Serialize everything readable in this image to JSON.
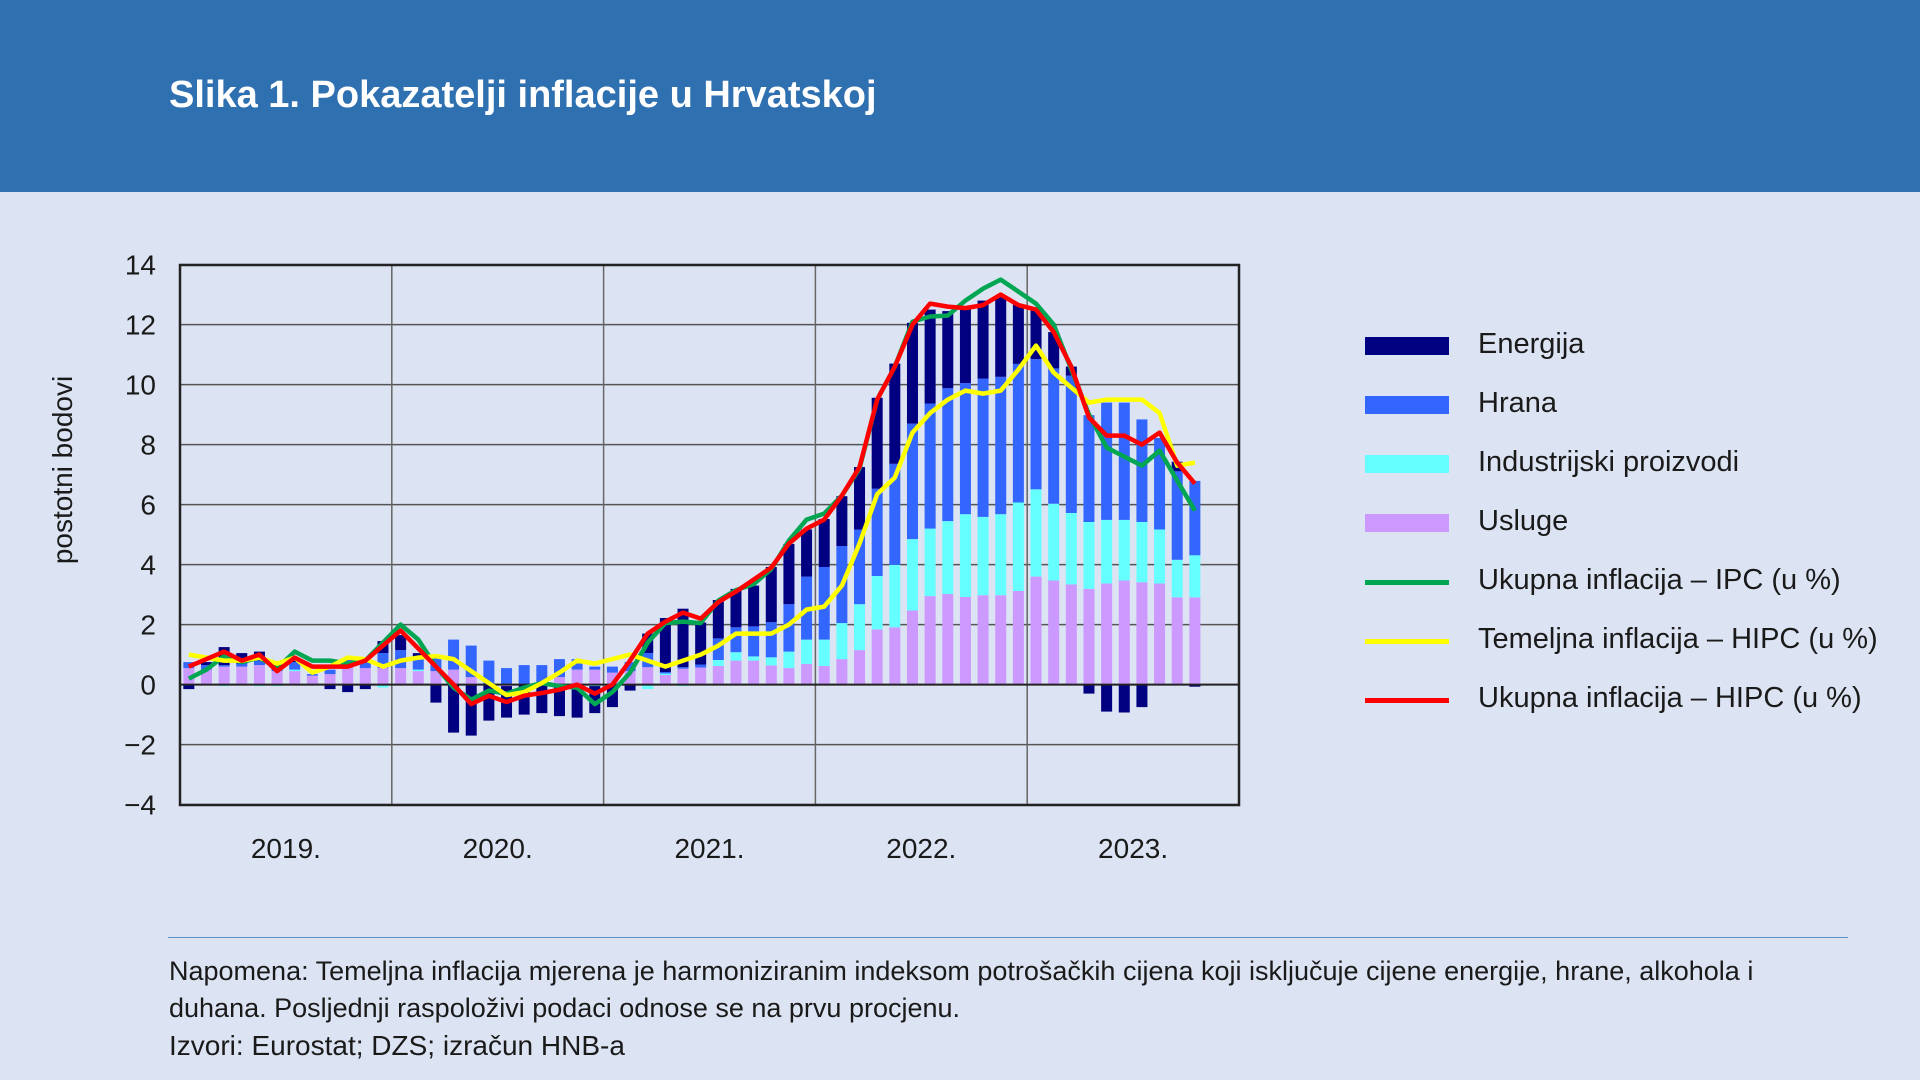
{
  "title": "Slika 1. Pokazatelji inflacije u Hrvatskoj",
  "note_line1": "Napomena: Temeljna inflacija mjerena je harmoniziranim indeksom potrošačkih cijena koji isključuje cijene energije, hrane, alkohola i",
  "note_line2": "duhana. Posljednji raspoloživi podaci odnose se na prvu procjenu.",
  "sources": "Izvori: Eurostat; DZS; izračun HNB-a",
  "chart_data": {
    "type": "bar",
    "title": "Slika 1. Pokazatelji inflacije u Hrvatskoj",
    "ylabel": "postotni bodovi",
    "xlabel": "",
    "ylim": [
      -4,
      14
    ],
    "yticks": [
      "14",
      "12",
      "10",
      "8",
      "6",
      "4",
      "2",
      "0",
      "−2",
      "−4"
    ],
    "ytick_values": [
      14,
      12,
      10,
      8,
      6,
      4,
      2,
      0,
      -2,
      -4
    ],
    "xticks": [
      "2019.",
      "2020.",
      "2021.",
      "2022.",
      "2023."
    ],
    "x_start": "2019-01",
    "months": 58,
    "grid": true,
    "legend_position": "right",
    "stacked_series": [
      {
        "name": "Usluge",
        "color": "#cc99ff",
        "values": [
          0.55,
          0.5,
          0.6,
          0.6,
          0.65,
          0.45,
          0.45,
          0.3,
          0.35,
          0.6,
          0.55,
          0.55,
          0.55,
          0.45,
          0.45,
          0.5,
          0.25,
          0,
          -0.05,
          0,
          0,
          0.25,
          0.5,
          0.5,
          0.4,
          0.45,
          0.58,
          0.32,
          0.53,
          0.57,
          0.62,
          0.8,
          0.8,
          0.64,
          0.55,
          0.69,
          0.62,
          0.85,
          1.15,
          1.84,
          1.91,
          2.47,
          2.95,
          3.02,
          2.92,
          2.98,
          2.98,
          3.12,
          3.6,
          3.47,
          3.34,
          3.19,
          3.37,
          3.47,
          3.41,
          3.37,
          2.91,
          2.91
        ]
      },
      {
        "name": "Industrijski proizvodi",
        "color": "#66ffff",
        "values": [
          0,
          0,
          -0.05,
          0,
          -0.05,
          -0.05,
          0.05,
          0,
          0,
          0,
          0,
          -0.1,
          0,
          0.05,
          0,
          0,
          0,
          0,
          0,
          0,
          0,
          0,
          0,
          -0.05,
          0,
          0,
          -0.15,
          0.05,
          -0.05,
          0,
          0.2,
          0.28,
          0.14,
          0.27,
          0.55,
          0.81,
          0.88,
          1.2,
          1.53,
          1.78,
          2.08,
          2.38,
          2.25,
          2.43,
          2.76,
          2.61,
          2.7,
          2.95,
          2.91,
          2.56,
          2.38,
          2.23,
          2.12,
          2.02,
          2.01,
          1.8,
          1.25,
          1.4
        ]
      },
      {
        "name": "Hrana",
        "color": "#3366ff",
        "values": [
          0.2,
          0.15,
          0.05,
          0.1,
          0.15,
          0.05,
          0.25,
          0.05,
          0.15,
          0.25,
          0.35,
          0.5,
          0.6,
          0.4,
          0.55,
          1.0,
          1.05,
          0.8,
          0.55,
          0.65,
          0.65,
          0.6,
          0.35,
          0.1,
          0.2,
          0.3,
          0.47,
          0.05,
          0.05,
          0.1,
          0.72,
          0.83,
          1.0,
          1.17,
          1.58,
          2.1,
          2.42,
          2.57,
          2.49,
          2.91,
          3.37,
          3.85,
          4.17,
          4.43,
          4.37,
          4.61,
          4.58,
          4.62,
          4.34,
          4.51,
          4.58,
          3.56,
          3.91,
          3.91,
          3.42,
          3.05,
          2.95,
          2.48
        ]
      },
      {
        "name": "Energija",
        "color": "#000080",
        "values": [
          -0.15,
          0.1,
          0.6,
          0.35,
          0.3,
          0.05,
          0.05,
          0,
          -0.15,
          -0.25,
          -0.15,
          0.4,
          0.5,
          0.15,
          -0.6,
          -1.6,
          -1.7,
          -1.2,
          -1.05,
          -1.0,
          -0.95,
          -1.05,
          -1.1,
          -0.9,
          -0.75,
          -0.2,
          0.65,
          1.8,
          1.95,
          1.4,
          1.28,
          1.28,
          1.36,
          1.84,
          2.01,
          1.57,
          1.6,
          1.66,
          2.08,
          3.03,
          3.34,
          3.36,
          3.13,
          2.57,
          2.51,
          2.6,
          2.67,
          1.97,
          1.67,
          1.21,
          0.3,
          -0.3,
          -0.9,
          -0.93,
          -0.75,
          0,
          0.32,
          -0.07
        ]
      }
    ],
    "line_series": [
      {
        "name": "Ukupna inflacija – IPC (u %)",
        "color": "#00a651",
        "values": [
          0.2,
          0.5,
          0.95,
          0.75,
          0.9,
          0.55,
          1.1,
          0.8,
          0.8,
          0.7,
          0.8,
          1.4,
          2.0,
          1.5,
          0.6,
          -0.1,
          -0.5,
          -0.2,
          -0.3,
          -0.1,
          0.05,
          -0.05,
          -0.1,
          -0.65,
          -0.25,
          0.4,
          1.4,
          2.05,
          2.1,
          2.05,
          2.8,
          3.15,
          3.35,
          3.85,
          4.8,
          5.5,
          5.7,
          6.3,
          7.2,
          9.5,
          10.6,
          12.1,
          12.27,
          12.3,
          12.8,
          13.2,
          13.5,
          13.1,
          12.7,
          12.0,
          10.5,
          9.0,
          7.9,
          7.6,
          7.3,
          7.8,
          6.8,
          5.8
        ]
      },
      {
        "name": "Temeljna inflacija – HIPC (u %)",
        "color": "#ffff00",
        "values": [
          1.0,
          0.9,
          0.8,
          0.8,
          0.9,
          0.7,
          0.9,
          0.4,
          0.6,
          0.9,
          0.85,
          0.6,
          0.8,
          0.9,
          0.95,
          0.85,
          0.45,
          0.05,
          -0.35,
          -0.25,
          0.05,
          0.4,
          0.8,
          0.7,
          0.85,
          1.0,
          0.8,
          0.6,
          0.8,
          1.0,
          1.3,
          1.7,
          1.7,
          1.7,
          2.0,
          2.5,
          2.6,
          3.3,
          4.7,
          6.35,
          6.9,
          8.4,
          9.05,
          9.5,
          9.8,
          9.7,
          9.8,
          10.5,
          11.3,
          10.4,
          9.9,
          9.4,
          9.5,
          9.5,
          9.5,
          9.05,
          7.3,
          7.4
        ]
      },
      {
        "name": "Ukupna inflacija – HIPC (u %)",
        "color": "#ff0000",
        "values": [
          0.6,
          0.85,
          1.1,
          0.8,
          1.0,
          0.45,
          0.9,
          0.6,
          0.6,
          0.6,
          0.8,
          1.3,
          1.8,
          1.2,
          0.6,
          0.0,
          -0.65,
          -0.37,
          -0.58,
          -0.37,
          -0.28,
          -0.17,
          0.0,
          -0.3,
          0.0,
          0.8,
          1.7,
          2.1,
          2.4,
          2.2,
          2.75,
          3.1,
          3.5,
          3.9,
          4.7,
          5.2,
          5.5,
          6.3,
          7.25,
          9.5,
          10.6,
          12.0,
          12.7,
          12.6,
          12.55,
          12.65,
          13.0,
          12.65,
          12.5,
          11.75,
          10.6,
          8.9,
          8.3,
          8.3,
          8.0,
          8.4,
          7.4,
          6.7
        ]
      }
    ]
  }
}
